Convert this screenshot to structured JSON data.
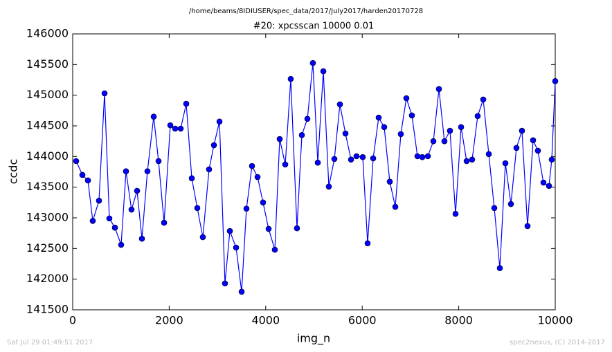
{
  "chart_data": {
    "type": "line",
    "suptitle": "/home/beams/8IDIUSER/spec_data/2017/July2017/harden20170728",
    "title": "#20: xpcsscan 10000 0.01",
    "x_label": "img_n",
    "y_label": "ccdc",
    "xlim": [
      0,
      10000
    ],
    "xticks": [
      0,
      2000,
      4000,
      6000,
      8000,
      10000
    ],
    "ylim": [
      141500,
      146000
    ],
    "yticks": [
      141500,
      142000,
      142500,
      143000,
      143500,
      144000,
      144500,
      145000,
      145500,
      146000
    ],
    "grid": false,
    "markers": true,
    "series": [
      {
        "name": "ccdc",
        "color": "#0000ff",
        "x": [
          72,
          201,
          316,
          416,
          545,
          660,
          760,
          875,
          1004,
          1105,
          1219,
          1334,
          1435,
          1549,
          1679,
          1779,
          1894,
          2023,
          2123,
          2238,
          2353,
          2468,
          2582,
          2697,
          2826,
          2927,
          3042,
          3156,
          3257,
          3386,
          3501,
          3601,
          3716,
          3831,
          3945,
          4060,
          4189,
          4290,
          4405,
          4519,
          4648,
          4749,
          4864,
          4978,
          5079,
          5194,
          5308,
          5423,
          5538,
          5653,
          5768,
          5882,
          6011,
          6112,
          6227,
          6341,
          6456,
          6571,
          6686,
          6800,
          6915,
          7030,
          7145,
          7245,
          7360,
          7475,
          7590,
          7704,
          7819,
          7934,
          8049,
          8164,
          8278,
          8393,
          8508,
          8623,
          8737,
          8852,
          8967,
          9082,
          9196,
          9311,
          9426,
          9541,
          9641,
          9756,
          9871,
          9928,
          10000
        ],
        "values": [
          143925,
          143700,
          143610,
          142950,
          143280,
          145030,
          142990,
          142840,
          142560,
          143760,
          143135,
          143440,
          142660,
          143760,
          144650,
          143925,
          142920,
          144510,
          144455,
          144455,
          144860,
          143645,
          143160,
          142685,
          143790,
          144185,
          144570,
          141930,
          142785,
          142515,
          141795,
          143150,
          143845,
          143665,
          143250,
          142820,
          142480,
          144285,
          143870,
          145265,
          142830,
          144350,
          144615,
          145525,
          143900,
          145390,
          143510,
          143960,
          144850,
          144375,
          143950,
          144005,
          143990,
          142585,
          143970,
          144635,
          144480,
          143590,
          143180,
          144365,
          144950,
          144670,
          144005,
          143990,
          144005,
          144250,
          145100,
          144250,
          144420,
          143065,
          144480,
          143925,
          143950,
          144660,
          144930,
          144040,
          143160,
          142180,
          143890,
          143225,
          144140,
          144420,
          142865,
          144265,
          144095,
          143575,
          143520,
          143950,
          145230
        ]
      }
    ]
  },
  "footer": {
    "timestamp": "Sat Jul 29 01:49:51 2017",
    "credit": "spec2nexus, (C) 2014-2017"
  }
}
